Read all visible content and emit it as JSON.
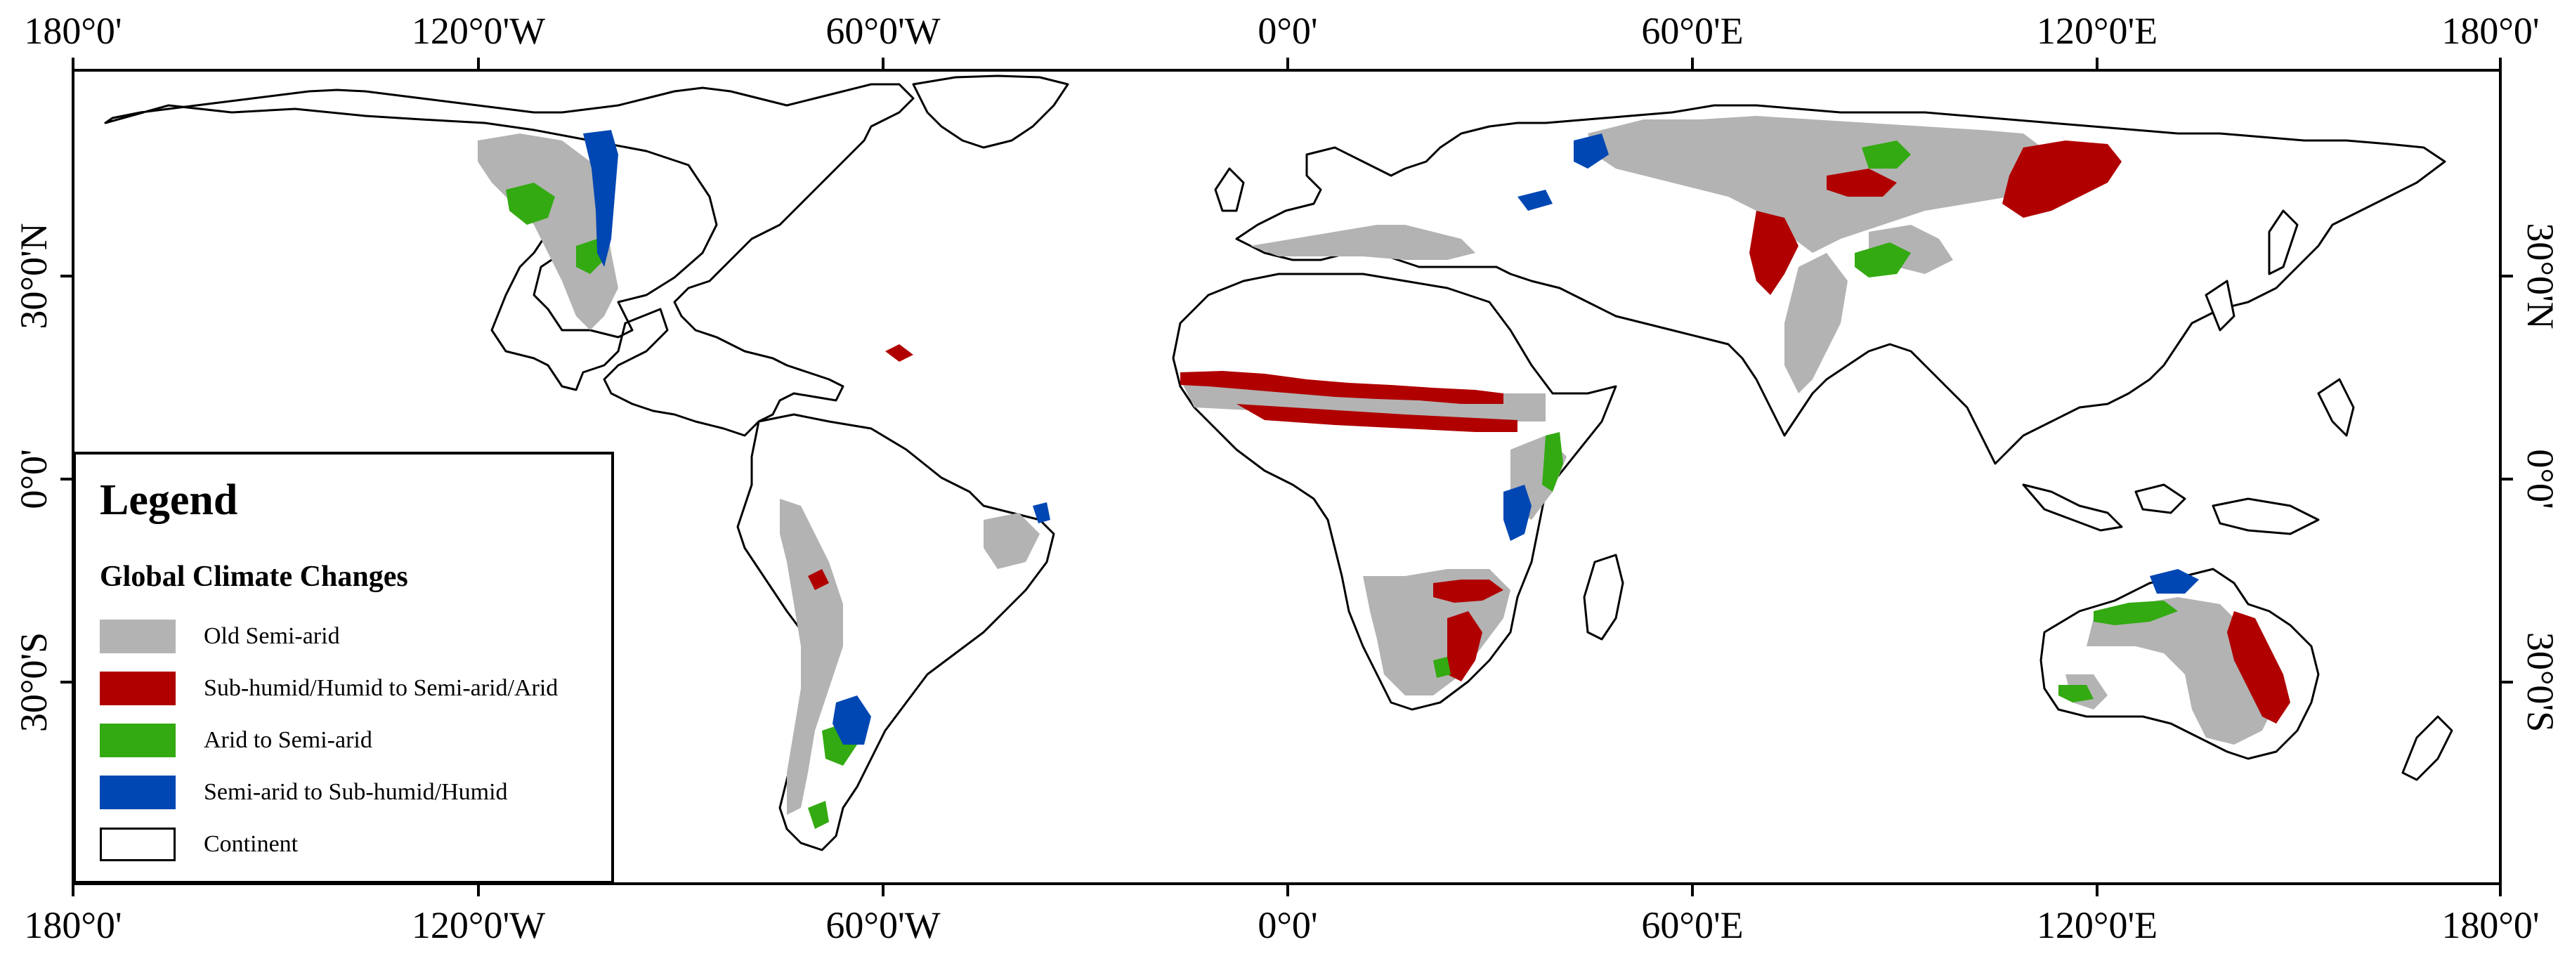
{
  "map": {
    "top_ticks": [
      "180°0'",
      "120°0'W",
      "60°0'W",
      "0°0'",
      "60°0'E",
      "120°0'E",
      "180°0'"
    ],
    "bottom_ticks": [
      "180°0'",
      "120°0'W",
      "60°0'W",
      "0°0'",
      "60°0'E",
      "120°0'E",
      "180°0'"
    ],
    "left_ticks": [
      "30°0'N",
      "0°0'",
      "30°0'S"
    ],
    "right_ticks": [
      "30°0'N",
      "0°0'",
      "30°0'S"
    ]
  },
  "legend": {
    "title": "Legend",
    "subtitle": "Global Climate Changes",
    "items": [
      {
        "label": "Old Semi-arid",
        "color": "#b3b3b3"
      },
      {
        "label": "Sub-humid/Humid to Semi-arid/Arid",
        "color": "#b00000"
      },
      {
        "label": "Arid to Semi-arid",
        "color": "#33aa11"
      },
      {
        "label": "Semi-arid to Sub-humid/Humid",
        "color": "#0047b3"
      },
      {
        "label": "Continent",
        "color": "#ffffff"
      }
    ]
  },
  "colors": {
    "old_semi_arid": "#b3b3b3",
    "humid_to_arid": "#b00000",
    "arid_to_semi_arid": "#33aa11",
    "semi_arid_to_humid": "#0047b3",
    "coastline": "#000000"
  }
}
